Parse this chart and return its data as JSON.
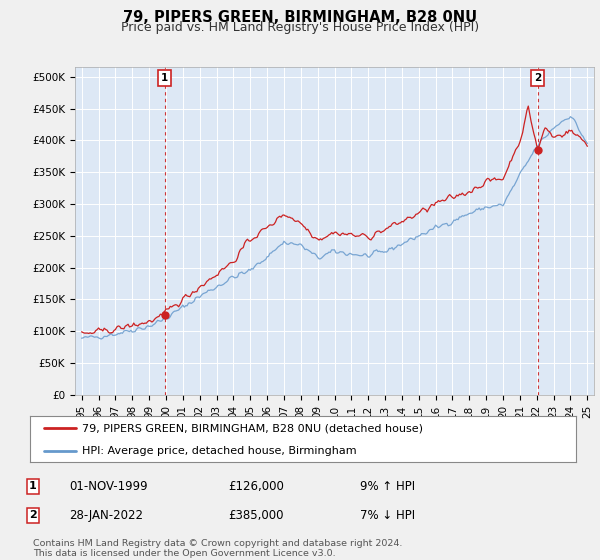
{
  "title": "79, PIPERS GREEN, BIRMINGHAM, B28 0NU",
  "subtitle": "Price paid vs. HM Land Registry's House Price Index (HPI)",
  "yticks": [
    0,
    50000,
    100000,
    150000,
    200000,
    250000,
    300000,
    350000,
    400000,
    450000,
    500000
  ],
  "ytick_labels": [
    "£0",
    "£50K",
    "£100K",
    "£150K",
    "£200K",
    "£250K",
    "£300K",
    "£350K",
    "£400K",
    "£450K",
    "£500K"
  ],
  "xlim_start": 1994.6,
  "xlim_end": 2025.4,
  "ylim": [
    0,
    515000
  ],
  "hpi_color": "#6699cc",
  "price_color": "#cc2222",
  "marker_color": "#cc2222",
  "marker_box_color": "#cc2222",
  "background_color": "#f0f0f0",
  "plot_bg_color": "#dde8f5",
  "grid_color": "#ffffff",
  "legend_label_price": "79, PIPERS GREEN, BIRMINGHAM, B28 0NU (detached house)",
  "legend_label_hpi": "HPI: Average price, detached house, Birmingham",
  "annotation1_label": "1",
  "annotation1_date": "01-NOV-1999",
  "annotation1_price": "£126,000",
  "annotation1_hpi": "9% ↑ HPI",
  "annotation2_label": "2",
  "annotation2_date": "28-JAN-2022",
  "annotation2_price": "£385,000",
  "annotation2_hpi": "7% ↓ HPI",
  "footer": "Contains HM Land Registry data © Crown copyright and database right 2024.\nThis data is licensed under the Open Government Licence v3.0.",
  "sale1_x": 1999.92,
  "sale1_y": 126000,
  "sale2_x": 2022.07,
  "sale2_y": 385000,
  "title_fontsize": 10.5,
  "subtitle_fontsize": 9,
  "tick_fontsize": 7.5,
  "legend_fontsize": 8
}
